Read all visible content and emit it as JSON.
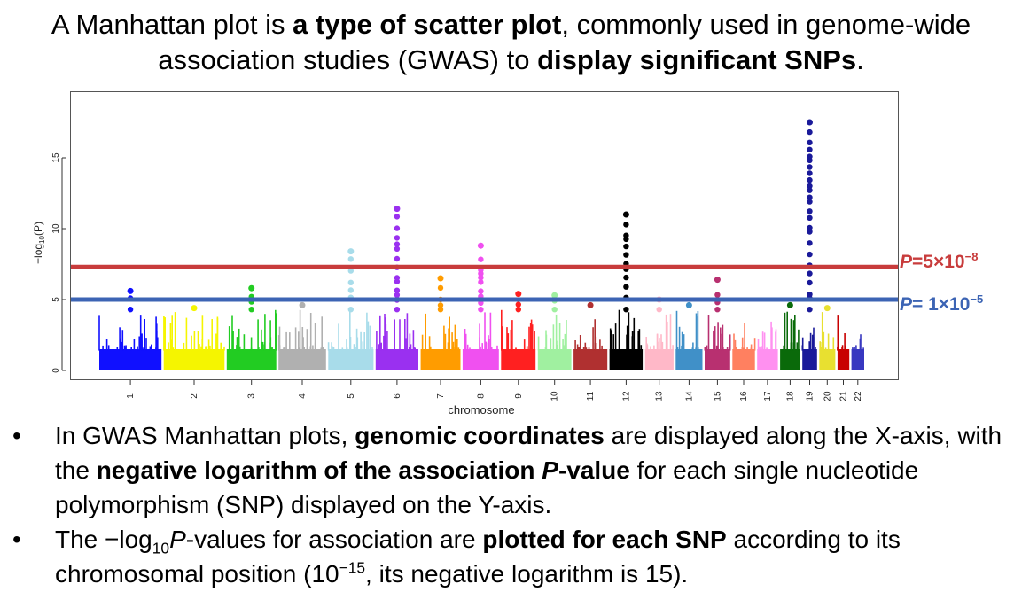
{
  "headline": {
    "part1": "A Manhattan plot is ",
    "bold1": "a type of scatter plot",
    "part2": ", commonly used in genome-wide association studies (GWAS) to ",
    "bold2": "display significant SNPs",
    "part3": "."
  },
  "chart_data": {
    "type": "scatter",
    "title": "",
    "xlabel": "chromosome",
    "ylabel": "−log10(P)",
    "ylim": [
      0,
      18
    ],
    "yticks": [
      0,
      5,
      10,
      15
    ],
    "grid": false,
    "categories": [
      "1",
      "2",
      "3",
      "4",
      "5",
      "6",
      "7",
      "8",
      "9",
      "10",
      "11",
      "12",
      "13",
      "14",
      "15",
      "16",
      "17",
      "18",
      "19",
      "20",
      "21",
      "22"
    ],
    "chromosome_colors": [
      "#1010ff",
      "#f5f500",
      "#22cc22",
      "#b0b0b0",
      "#a8dcea",
      "#9a30f0",
      "#ff9c00",
      "#f050f0",
      "#ff2020",
      "#a0f0a0",
      "#b03030",
      "#000000",
      "#ffb8c8",
      "#4090c8",
      "#b83070",
      "#ff8060",
      "#ff90f0",
      "#0a6a0a",
      "#1a1a9a",
      "#e8e030",
      "#c80000",
      "#3838c0"
    ],
    "peak_max_log10p": [
      5.6,
      4.4,
      5.8,
      4.6,
      8.4,
      11.4,
      6.5,
      8.8,
      5.4,
      5.3,
      4.6,
      11.0,
      5.0,
      4.6,
      6.4,
      4.3,
      4.3,
      4.6,
      17.5,
      4.4,
      4.2,
      3.8
    ],
    "thresholds": [
      {
        "p_label": "P",
        "label_rest": "=5×10",
        "exponent": "−8",
        "value": 7.3,
        "color": "#c83c3c"
      },
      {
        "p_label": "P",
        "label_rest": "= 1×10",
        "exponent": "−5",
        "value": 5.0,
        "color": "#3c64b4"
      }
    ]
  },
  "bullets": [
    {
      "t1": "In GWAS Manhattan plots, ",
      "b1": "genomic coordinates",
      "t2": " are displayed along the X-axis, with the ",
      "b2": "negative logarithm of the association ",
      "b2i": "P",
      "b3": "-value",
      "t3": " for each single nucleotide polymorphism (SNP) displayed on the Y-axis."
    },
    {
      "t1": "The −log",
      "sub": "10",
      "i1": "P",
      "t2": "-values for association are ",
      "b1": "plotted for each SNP",
      "t3": " according to its chromosomal position (10",
      "sup": "−15",
      "t4": ", its negative logarithm is 15)."
    }
  ]
}
